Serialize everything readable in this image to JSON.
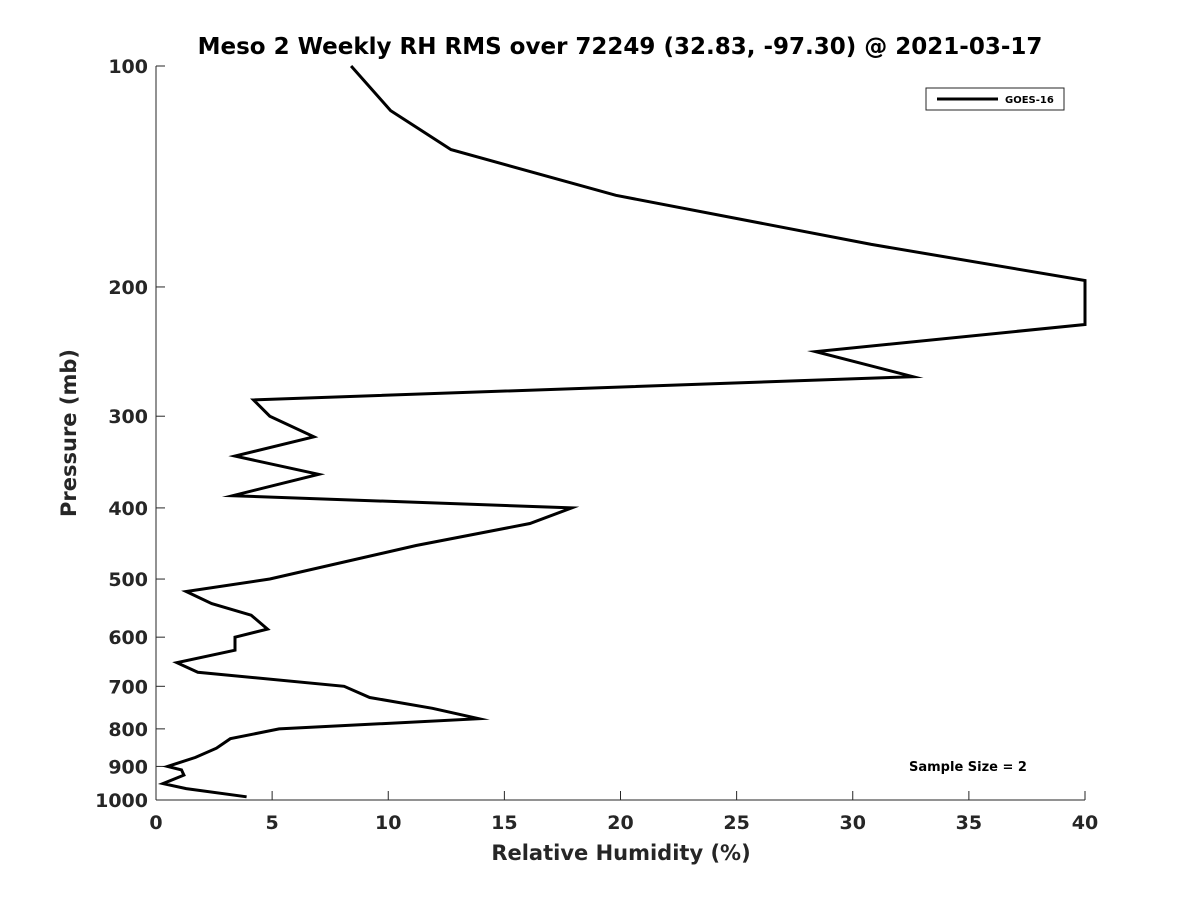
{
  "chart_data": {
    "type": "line",
    "title": "Meso 2 Weekly RH RMS over 72249 (32.83, -97.30) @ 2021-03-17",
    "xlabel": "Relative Humidity (%)",
    "ylabel": "Pressure (mb)",
    "xlim": [
      0,
      40
    ],
    "ylim": [
      100,
      1000
    ],
    "y_scale": "log",
    "y_reversed": true,
    "x_ticks": [
      "0",
      "5",
      "10",
      "15",
      "20",
      "25",
      "30",
      "35",
      "40"
    ],
    "y_ticks": [
      "100",
      "200",
      "300",
      "400",
      "500",
      "600",
      "700",
      "800",
      "900",
      "1000"
    ],
    "grid": false,
    "legend_position": "top-right",
    "annotation": "Sample Size = 2",
    "series": [
      {
        "name": "GOES-16",
        "color": "#000000",
        "x": [
          8.4,
          10.1,
          12.7,
          19.8,
          30.8,
          40.0,
          40.0,
          28.4,
          32.6,
          4.2,
          4.9,
          6.8,
          3.4,
          7.0,
          3.3,
          17.9,
          16.1,
          11.2,
          4.9,
          1.3,
          2.4,
          4.1,
          4.8,
          3.4,
          3.4,
          0.9,
          1.8,
          8.1,
          9.2,
          11.9,
          13.9,
          5.3,
          3.2,
          2.6,
          1.7,
          0.5,
          1.1,
          1.2,
          0.3,
          1.3,
          3.9
        ],
        "y": [
          100,
          115,
          130,
          150,
          175,
          196,
          225,
          245,
          265,
          285,
          300,
          320,
          340,
          360,
          385,
          400,
          420,
          450,
          500,
          520,
          540,
          560,
          585,
          600,
          625,
          650,
          670,
          700,
          725,
          750,
          775,
          800,
          825,
          850,
          875,
          900,
          910,
          925,
          950,
          965,
          990
        ]
      }
    ]
  }
}
